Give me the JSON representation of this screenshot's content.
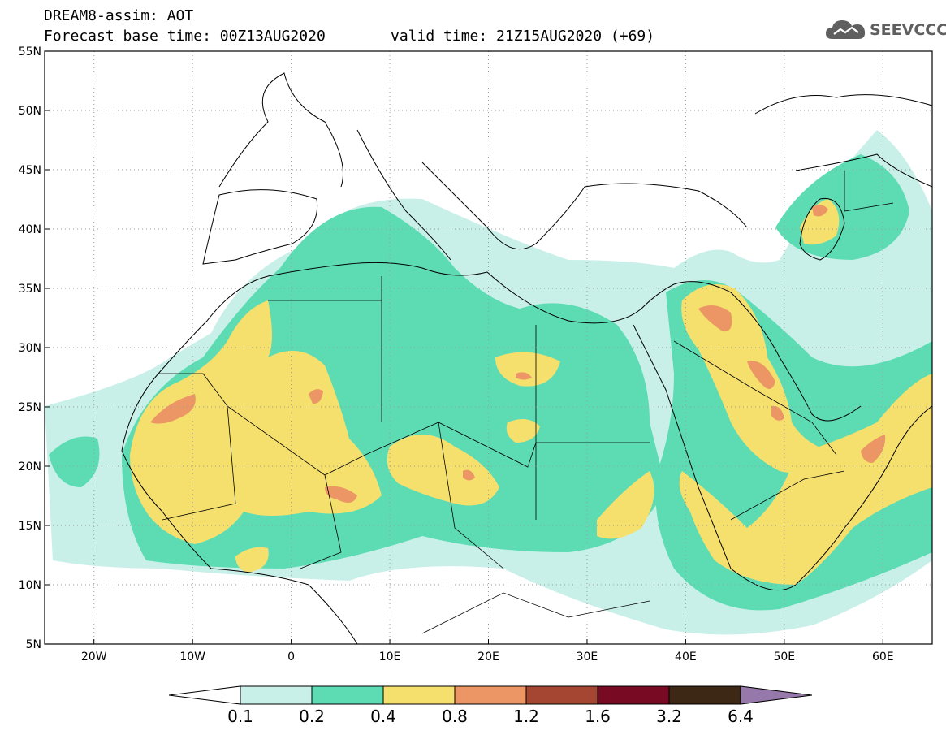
{
  "header": {
    "title": "DREAM8-assim: AOT",
    "forecast_base": "Forecast base time: 00Z13AUG2020",
    "valid_time": "valid time: 21Z15AUG2020 (+69)"
  },
  "logo": {
    "text": "SEEVCCC",
    "icon": "cloud-icon"
  },
  "map": {
    "lon_range": [
      -25,
      65
    ],
    "lat_range": [
      5,
      55
    ],
    "lat_ticks": [
      "55N",
      "50N",
      "45N",
      "40N",
      "35N",
      "30N",
      "25N",
      "20N",
      "15N",
      "10N",
      "5N"
    ],
    "lon_ticks": [
      "20W",
      "10W",
      "0",
      "10E",
      "20E",
      "30E",
      "40E",
      "50E",
      "60E"
    ],
    "gridlines": "dotted"
  },
  "colorbar": {
    "labels": [
      "0.1",
      "0.2",
      "0.4",
      "0.8",
      "1.2",
      "1.6",
      "3.2",
      "6.4"
    ],
    "colors": [
      "#ffffff",
      "#c8f0e8",
      "#5ddcb4",
      "#f5e06e",
      "#eb9664",
      "#a54632",
      "#780a23",
      "#3c2814",
      "#9678aa"
    ]
  }
}
